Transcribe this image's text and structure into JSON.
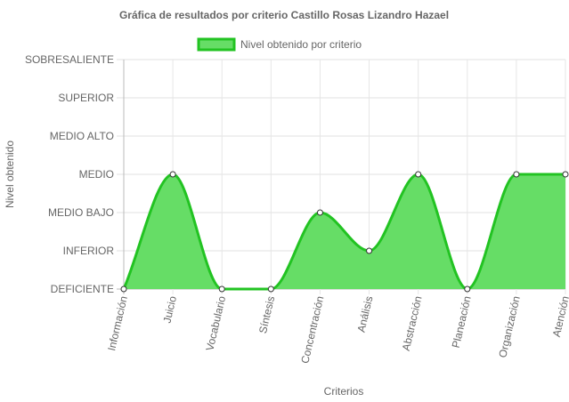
{
  "chart_data": {
    "type": "area",
    "title": "Gráfica de resultados por criterio Castillo Rosas Lizandro Hazael",
    "xlabel": "Criterios",
    "ylabel": "Nivel obtenido",
    "legend_position": "top",
    "levels": [
      "DEFICIENTE",
      "INFERIOR",
      "MEDIO BAJO",
      "MEDIO",
      "MEDIO ALTO",
      "SUPERIOR",
      "SOBRESALIENTE"
    ],
    "categories": [
      "Información",
      "Juicio",
      "Vocabulario",
      "Síntesis",
      "Concentración",
      "Análisis",
      "Abstracción",
      "Planeación",
      "Organización",
      "Atención"
    ],
    "series": [
      {
        "name": "Nivel obtenido por criterio",
        "values": [
          0,
          3,
          0,
          0,
          2,
          1,
          3,
          0,
          3,
          3
        ],
        "color": "#22c322",
        "fill": "#66dd66"
      }
    ],
    "ylim": [
      0,
      6
    ],
    "grid": true
  }
}
